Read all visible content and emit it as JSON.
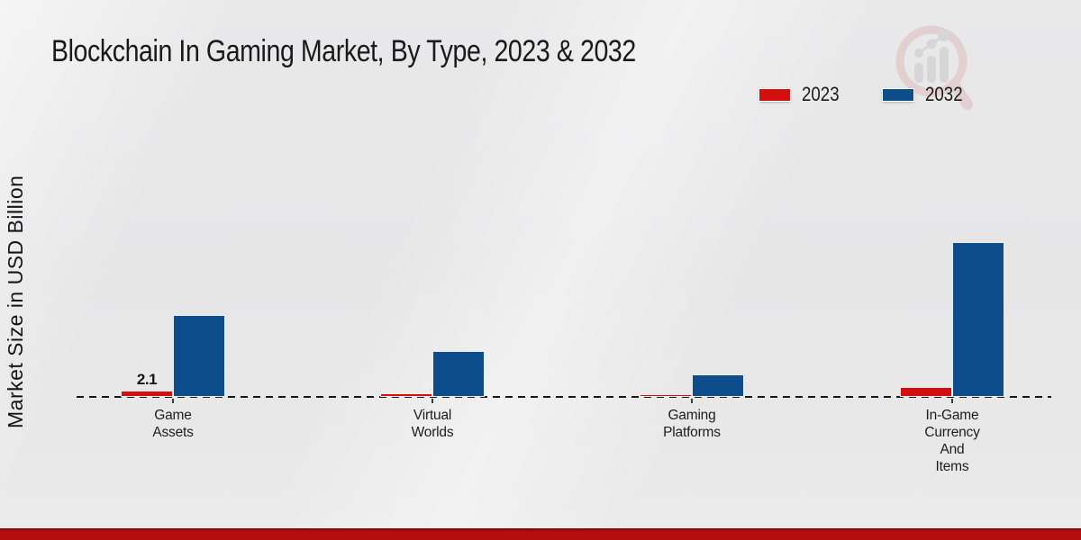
{
  "page": {
    "title": "Blockchain In Gaming Market, By Type, 2023 & 2032"
  },
  "legend": {
    "items": [
      {
        "label": "2023",
        "color": "#d40f0f"
      },
      {
        "label": "2032",
        "color": "#0d4d8c"
      }
    ]
  },
  "watermark": {
    "name": "magnifier-growth-chart-logo"
  },
  "footer": {
    "color": "#b30d0d"
  },
  "chart_data": {
    "type": "bar",
    "title": "Blockchain In Gaming Market, By Type, 2023 & 2032",
    "categories": [
      "Game Assets",
      "Virtual Worlds",
      "Gaming Platforms",
      "In-Game Currency And Items"
    ],
    "series": [
      {
        "name": "2023",
        "color": "#d40f0f",
        "values": [
          2.1,
          1.2,
          0.9,
          3.3
        ]
      },
      {
        "name": "2032",
        "color": "#0d4d8c",
        "values": [
          27.4,
          15.3,
          7.5,
          51.7
        ]
      }
    ],
    "bar_labels": [
      {
        "series": "2023",
        "category": "Game Assets",
        "text": "2.1"
      }
    ],
    "xlabel": "",
    "ylabel": "Market Size in USD Billion",
    "ylim": [
      0,
      55
    ],
    "grid": false,
    "y_ticks_visible": false,
    "legend_position": "top-right",
    "baseline_style": "dashed"
  }
}
